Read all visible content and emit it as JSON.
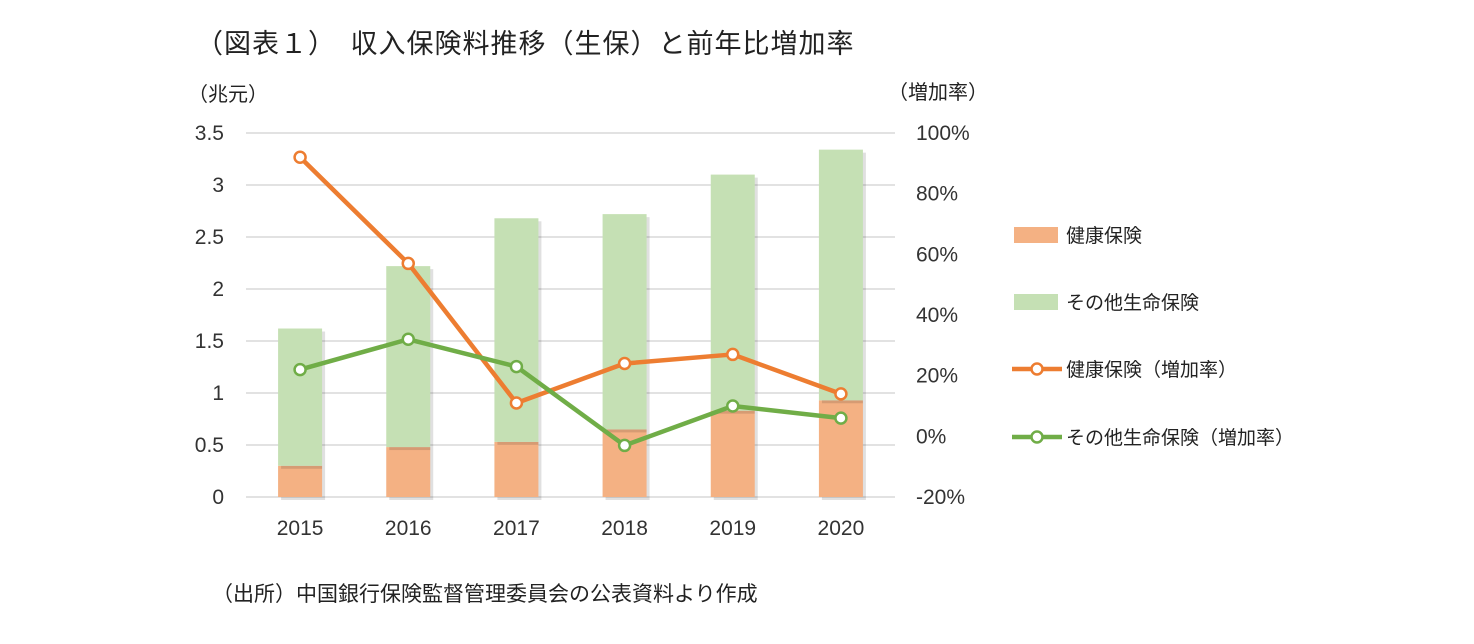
{
  "title": "（図表１）　収入保険料推移（生保）と前年比増加率",
  "source": "（出所）中国銀行保険監督管理委員会の公表資料より作成",
  "chart_data": {
    "type": "bar",
    "stacked": true,
    "categories": [
      "2015",
      "2016",
      "2017",
      "2018",
      "2019",
      "2020"
    ],
    "y_left": {
      "label": "（兆元）",
      "ylim": [
        0,
        3.5
      ],
      "ticks": [
        "0",
        "0.5",
        "1",
        "1.5",
        "2",
        "2.5",
        "3",
        "3.5"
      ]
    },
    "y_right": {
      "label": "（増加率）",
      "ylim": [
        -20,
        100
      ],
      "ticks": [
        "-20%",
        "0%",
        "20%",
        "40%",
        "60%",
        "80%",
        "100%"
      ]
    },
    "series": [
      {
        "name": "健康保険",
        "kind": "bar",
        "axis": "left",
        "color": "#f4b183",
        "values": [
          0.3,
          0.48,
          0.53,
          0.65,
          0.83,
          0.93
        ]
      },
      {
        "name": "その他生命保険",
        "kind": "bar",
        "axis": "left",
        "color": "#c5e0b4",
        "values": [
          1.32,
          1.74,
          2.15,
          2.07,
          2.27,
          2.41
        ]
      },
      {
        "name": "健康保険（増加率）",
        "kind": "line",
        "axis": "right",
        "color": "#ed7d31",
        "values": [
          92,
          57,
          11,
          24,
          27,
          14
        ]
      },
      {
        "name": "その他生命保険（増加率）",
        "kind": "line",
        "axis": "right",
        "color": "#70ad47",
        "values": [
          22,
          32,
          23,
          -3,
          10,
          6
        ]
      }
    ],
    "grid": true,
    "legend": "right"
  }
}
